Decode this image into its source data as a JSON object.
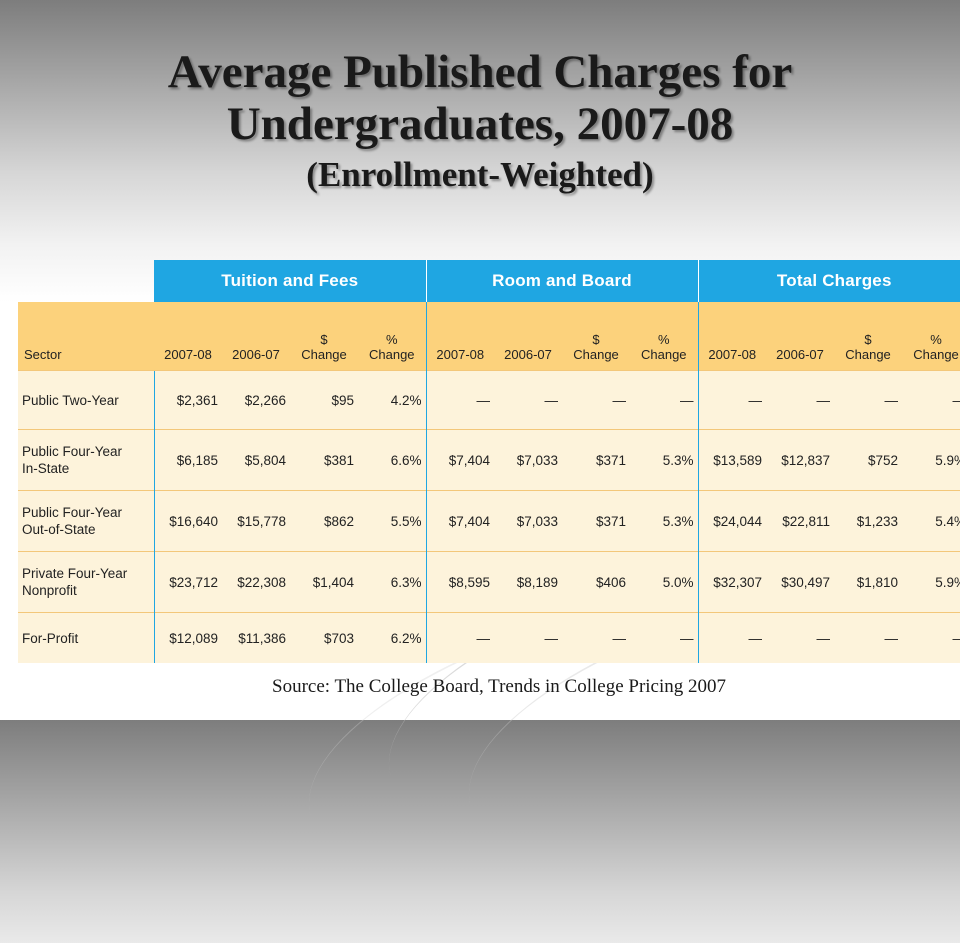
{
  "title": {
    "line1": "Average Published Charges for",
    "line2": "Undergraduates, 2007-08",
    "line3": "(Enrollment-Weighted)"
  },
  "table": {
    "groups": [
      "Tuition and Fees",
      "Room and Board",
      "Total Charges"
    ],
    "sector_header": "Sector",
    "columns": [
      {
        "l1": "",
        "l2": "2007-08"
      },
      {
        "l1": "",
        "l2": "2006-07"
      },
      {
        "l1": "$",
        "l2": "Change"
      },
      {
        "l1": "%",
        "l2": "Change"
      }
    ],
    "rows": [
      {
        "sector1": "Public Two-Year",
        "sector2": "",
        "tf": [
          "$2,361",
          "$2,266",
          "$95",
          "4.2%"
        ],
        "rb": [
          "—",
          "—",
          "—",
          "—"
        ],
        "tc": [
          "—",
          "—",
          "—",
          "—"
        ]
      },
      {
        "sector1": "Public Four-Year",
        "sector2": "In-State",
        "tf": [
          "$6,185",
          "$5,804",
          "$381",
          "6.6%"
        ],
        "rb": [
          "$7,404",
          "$7,033",
          "$371",
          "5.3%"
        ],
        "tc": [
          "$13,589",
          "$12,837",
          "$752",
          "5.9%"
        ]
      },
      {
        "sector1": "Public Four-Year",
        "sector2": "Out-of-State",
        "tf": [
          "$16,640",
          "$15,778",
          "$862",
          "5.5%"
        ],
        "rb": [
          "$7,404",
          "$7,033",
          "$371",
          "5.3%"
        ],
        "tc": [
          "$24,044",
          "$22,811",
          "$1,233",
          "5.4%"
        ]
      },
      {
        "sector1": "Private Four-Year",
        "sector2": "Nonprofit",
        "tf": [
          "$23,712",
          "$22,308",
          "$1,404",
          "6.3%"
        ],
        "rb": [
          "$8,595",
          "$8,189",
          "$406",
          "5.0%"
        ],
        "tc": [
          "$32,307",
          "$30,497",
          "$1,810",
          "5.9%"
        ]
      },
      {
        "sector1": "For-Profit",
        "sector2": "",
        "tf": [
          "$12,089",
          "$11,386",
          "$703",
          "6.2%"
        ],
        "rb": [
          "—",
          "—",
          "—",
          "—"
        ],
        "tc": [
          "—",
          "—",
          "—",
          "—"
        ]
      }
    ]
  },
  "source": "Source: The College Board, Trends in College Pricing 2007",
  "colors": {
    "group_header": "#1fa6e2",
    "column_header": "#fcd27c",
    "row_bg": "#fdf3db"
  }
}
